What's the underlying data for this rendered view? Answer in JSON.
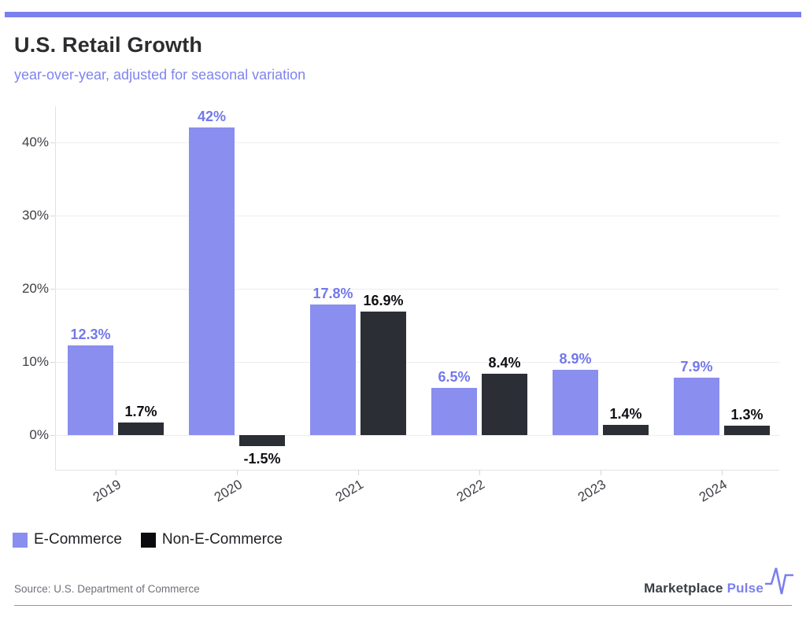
{
  "colors": {
    "accent": "#7a80ed",
    "ecommerce_bar": "#8a8eee",
    "ecommerce_label": "#7378e9",
    "non_ecommerce_bar": "#2c2e36",
    "non_ecommerce_label": "#0f0f14",
    "legend_non_ecommerce_swatch": "#0b0b0f"
  },
  "header": {
    "title": "U.S. Retail Growth",
    "subtitle": "year-over-year, adjusted for seasonal variation"
  },
  "chart_data": {
    "type": "bar",
    "title": "U.S. Retail Growth",
    "subtitle": "year-over-year, adjusted for seasonal variation",
    "categories": [
      "2019",
      "2020",
      "2021",
      "2022",
      "2023",
      "2024"
    ],
    "series": [
      {
        "name": "E-Commerce",
        "color": "#8a8eee",
        "label_color": "#7378e9",
        "values": [
          12.3,
          42,
          17.8,
          6.5,
          8.9,
          7.9
        ],
        "value_labels": [
          "12.3%",
          "42%",
          "17.8%",
          "6.5%",
          "8.9%",
          "7.9%"
        ]
      },
      {
        "name": "Non-E-Commerce",
        "color": "#2c2e36",
        "label_color": "#0f0f14",
        "values": [
          1.7,
          -1.5,
          16.9,
          8.4,
          1.4,
          1.3
        ],
        "value_labels": [
          "1.7%",
          "-1.5%",
          "16.9%",
          "8.4%",
          "1.4%",
          "1.3%"
        ]
      }
    ],
    "y_axis": {
      "ticks": [
        {
          "value": 0,
          "label": "0%"
        },
        {
          "value": 10,
          "label": "10%"
        },
        {
          "value": 20,
          "label": "20%"
        },
        {
          "value": 30,
          "label": "30%"
        },
        {
          "value": 40,
          "label": "40%"
        }
      ],
      "range": [
        -4.7,
        45
      ]
    },
    "grid": true,
    "legend_position": "bottom-left"
  },
  "legend": {
    "items": [
      {
        "label": "E-Commerce",
        "color": "#8a8eee"
      },
      {
        "label": "Non-E-Commerce",
        "color": "#0b0b0f"
      }
    ]
  },
  "footer": {
    "source": "Source: U.S. Department of Commerce",
    "brand": {
      "first": "Marketplace",
      "second": "Pulse",
      "icon": "pulse-waveform-icon"
    }
  }
}
